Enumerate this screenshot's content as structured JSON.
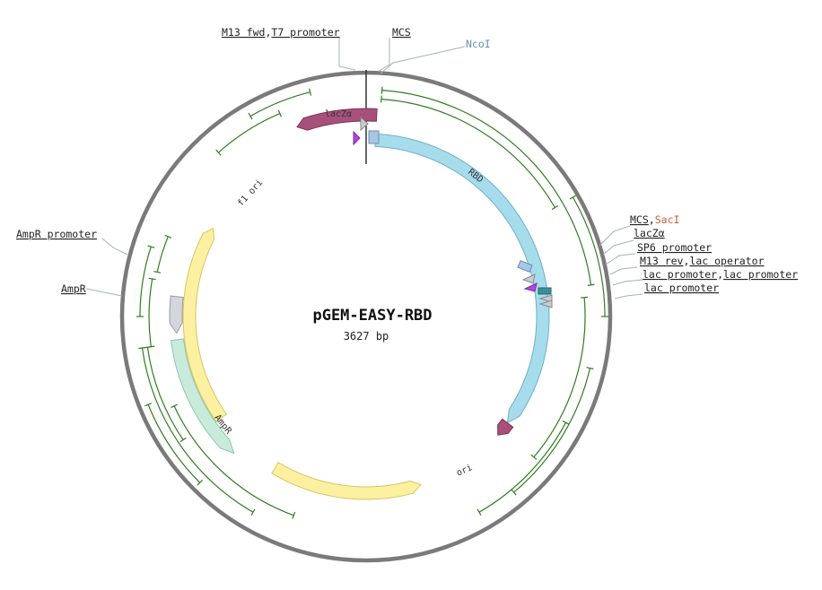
{
  "plasmid": {
    "name": "pGEM-EASY-RBD",
    "length": "3627 bp"
  },
  "colors": {
    "backbone": "#7a7a7a",
    "orf": "#2f7d1f",
    "lacZ": "#a8507c",
    "rbd": "#a6dcec",
    "ori": "#fdf0a0",
    "ampR": "#c9ebdc",
    "ampRPromoter": "#d4d6dc",
    "promoter": "#aaaaaa",
    "site": "#a9c6e4",
    "rbs": "#a040d0",
    "operator": "#3b8f96"
  },
  "features": [
    {
      "name": "lacZα",
      "label": "lacZα"
    },
    {
      "name": "RBD",
      "label": "RBD"
    },
    {
      "name": "f1 ori",
      "label": "f1 ori"
    },
    {
      "name": "ori",
      "label": "ori"
    },
    {
      "name": "AmpR",
      "label": "AmpR"
    },
    {
      "name": "AmpR promoter",
      "label": ""
    }
  ],
  "labels": {
    "m13fwd": "M13 fwd",
    "t7": "T7 promoter",
    "mcsTop": "MCS",
    "ncoi": "NcoI",
    "mcsRight": "MCS",
    "saci": "SacI",
    "lacZa": "lacZα",
    "sp6": "SP6 promoter",
    "m13rev": "M13 rev",
    "lacOperator": "lac operator",
    "lacPromoter1": "lac promoter",
    "lacPromoter2": "lac promoter",
    "lacPromoter3": "lac promoter",
    "ampRPromoter": "AmpR promoter",
    "ampR": "AmpR"
  },
  "separator": ","
}
